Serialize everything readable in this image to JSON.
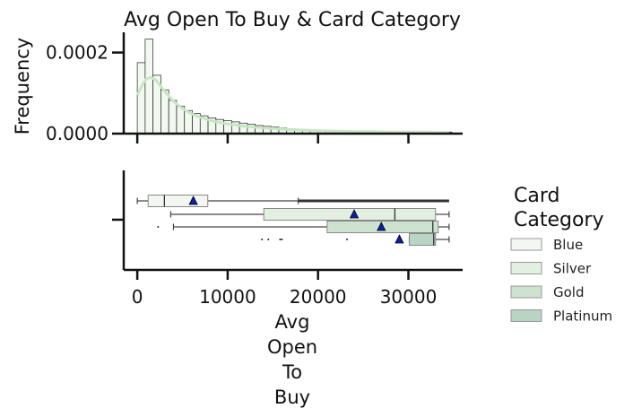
{
  "chart_data": {
    "title": "Avg Open To Buy & Card Category",
    "top": {
      "type": "histogram",
      "ylabel": "Frequency",
      "ytick_labels": [
        "0.0000",
        "0.0002"
      ],
      "yticks": [
        0,
        0.0002
      ],
      "ylim": [
        0,
        0.00025
      ],
      "xlim": [
        -1500,
        36000
      ],
      "bin_start": 0,
      "bin_width": 870,
      "densities": [
        0.000175,
        0.000233,
        0.000144,
        0.000108,
        8.2e-05,
        6.8e-05,
        5.7e-05,
        5e-05,
        4.4e-05,
        3.9e-05,
        3.5e-05,
        3.2e-05,
        2.9e-05,
        2.6e-05,
        2.3e-05,
        2e-05,
        1.8e-05,
        1.6e-05,
        1.4e-05,
        1.2e-05,
        1.1e-05,
        1e-05,
        9e-06,
        8e-06,
        7e-06,
        6e-06,
        6e-06,
        5e-06,
        5e-06,
        4e-06,
        4e-06,
        4e-06,
        3e-06,
        3e-06,
        3e-06,
        3e-06,
        3e-06,
        3e-06,
        4e-06,
        4e-06
      ],
      "kde_x": [
        0,
        500,
        1000,
        1500,
        2000,
        2500,
        3000,
        4000,
        5000,
        6000,
        7000,
        8000,
        9000,
        10000,
        12000,
        14000,
        16000,
        18000,
        20000,
        22000,
        24000,
        26000,
        28000,
        30000,
        32000,
        34000,
        34500
      ],
      "kde_y": [
        9.5e-05,
        0.000118,
        0.000135,
        0.000139,
        0.000133,
        0.00012,
        0.000105,
        8e-05,
        6.2e-05,
        4.9e-05,
        4e-05,
        3.3e-05,
        2.8e-05,
        2.4e-05,
        1.8e-05,
        1.4e-05,
        1.1e-05,
        9e-06,
        7e-06,
        6e-06,
        5e-06,
        5e-06,
        4e-06,
        4e-06,
        4e-06,
        3e-06,
        3e-06
      ]
    },
    "bottom": {
      "type": "boxplot",
      "xlabel": "Avg Open To Buy",
      "xtick_labels": [
        "0",
        "10000",
        "20000",
        "30000"
      ],
      "xticks": [
        0,
        10000,
        20000,
        30000
      ],
      "xlim": [
        -1500,
        36000
      ],
      "legend_title": "Card Category",
      "legend_position": "right",
      "series": [
        {
          "name": "Blue",
          "whisker_low": 3,
          "q1": 1200,
          "median": 3000,
          "q3": 7800,
          "whisker_high": 17800,
          "mean": 6200,
          "max": 34500,
          "color": "#f2f7f1"
        },
        {
          "name": "Silver",
          "whisker_low": 3700,
          "q1": 14000,
          "median": 28500,
          "q3": 33000,
          "whisker_high": 34500,
          "mean": 24000,
          "color": "#e3efe1"
        },
        {
          "name": "Gold",
          "whisker_low": 4000,
          "q1": 21000,
          "median": 32700,
          "q3": 33300,
          "whisker_high": 34500,
          "mean": 27000,
          "outliers": [
            2300
          ],
          "color": "#cde3cf"
        },
        {
          "name": "Platinum",
          "whisker_low": 30100,
          "q1": 30100,
          "median": 32800,
          "q3": 33000,
          "whisker_high": 34500,
          "mean": 29000,
          "outliers": [
            13800,
            14500,
            15800,
            16000,
            23200
          ],
          "color": "#b8d4c3"
        }
      ]
    }
  }
}
